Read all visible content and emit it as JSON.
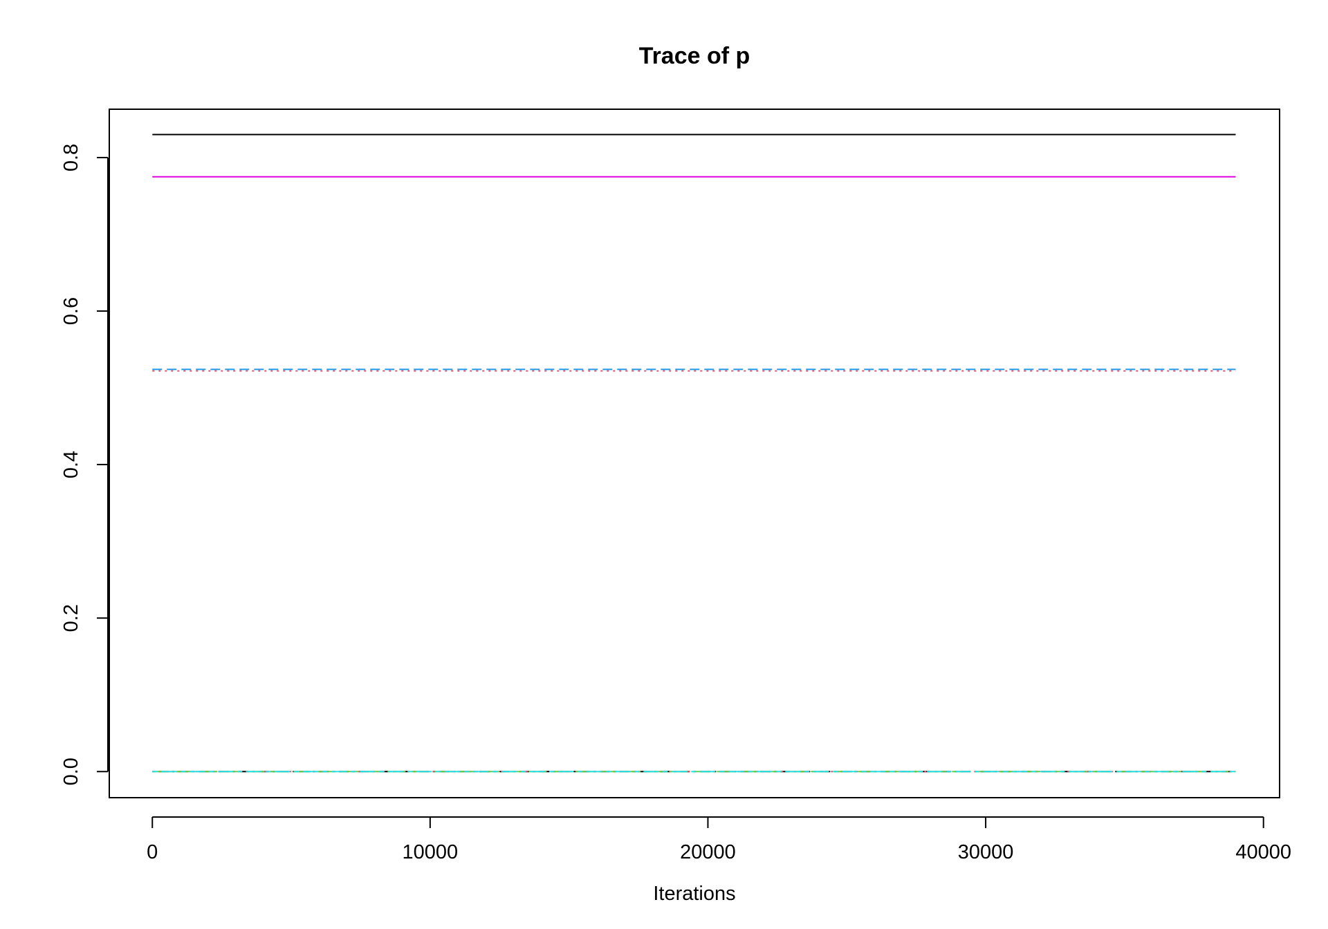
{
  "chart_data": {
    "type": "line",
    "title": "Trace of p",
    "xlabel": "Iterations",
    "ylabel": "",
    "xlim": [
      -1550,
      40580
    ],
    "ylim": [
      -0.034,
      0.863
    ],
    "x_ticks": [
      0,
      10000,
      20000,
      30000,
      40000
    ],
    "y_ticks": [
      0.0,
      0.2,
      0.4,
      0.6,
      0.8
    ],
    "x_tick_labels": [
      "0",
      "10000",
      "20000",
      "30000",
      "40000"
    ],
    "y_tick_labels": [
      "0.0",
      "0.2",
      "0.4",
      "0.6",
      "0.8"
    ],
    "grid": false,
    "legend": "none",
    "x": [
      0,
      39000
    ],
    "series": [
      {
        "values": [
          0.83,
          0.83
        ],
        "color": "#000000",
        "dash": "solid"
      },
      {
        "values": [
          0.775,
          0.775
        ],
        "color": "#DF00DF",
        "dash": "solid"
      },
      {
        "values": [
          0.524,
          0.524
        ],
        "color": "#2297E6",
        "dash": "dashed"
      },
      {
        "values": [
          0.522,
          0.522
        ],
        "color": "#DF536B",
        "dash": "dotted"
      },
      {
        "values": [
          0.0,
          0.0
        ],
        "color": "#000000",
        "dash": "dashdot"
      },
      {
        "values": [
          0.0,
          0.0
        ],
        "color": "#DF536B",
        "dash": "dotted"
      },
      {
        "values": [
          0.0,
          0.0
        ],
        "color": "#61D04F",
        "dash": "longdash"
      },
      {
        "values": [
          0.0,
          0.0
        ],
        "color": "#28E2E5",
        "dash": "twodash"
      }
    ]
  }
}
